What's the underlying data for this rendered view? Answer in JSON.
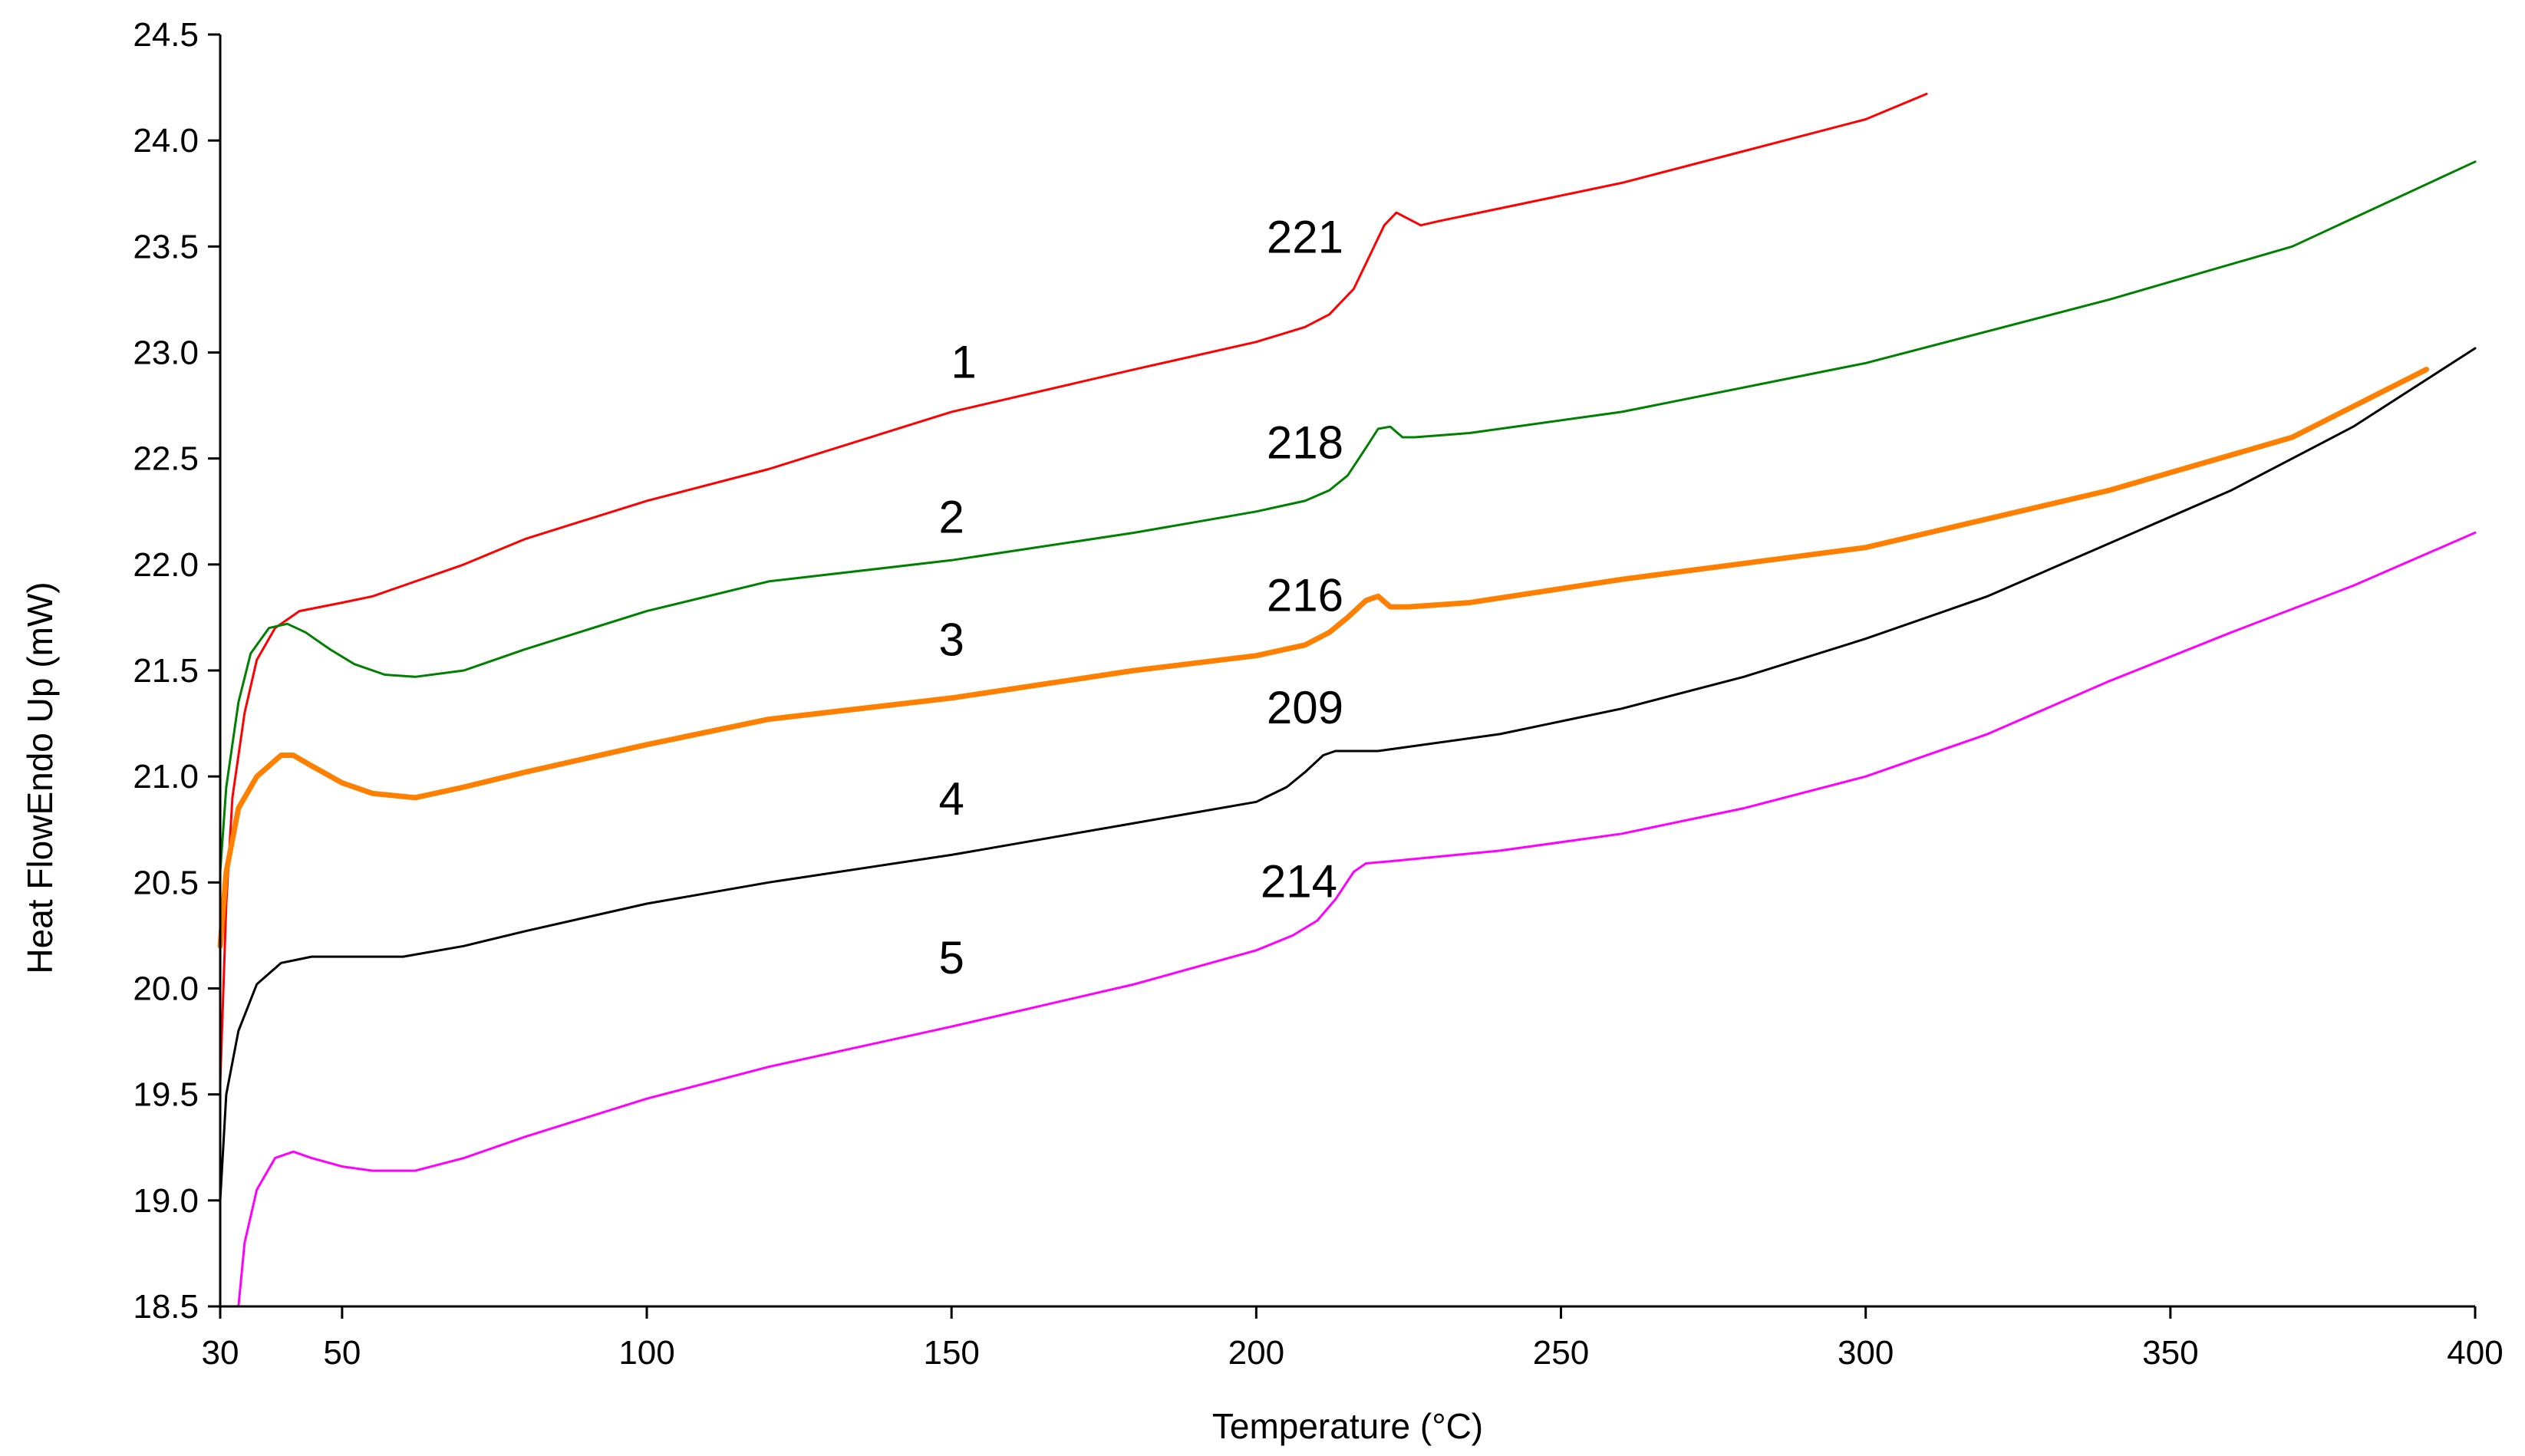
{
  "chart_data": {
    "type": "line",
    "title": "",
    "xlabel": "Temperature (°C)",
    "ylabel": "Heat FlowEndo Up (mW)",
    "xlim": [
      30,
      400
    ],
    "ylim": [
      18.5,
      24.5
    ],
    "grid": false,
    "legend": "none",
    "x_ticks": [
      {
        "value": 30,
        "label": "30"
      },
      {
        "value": 50,
        "label": "50"
      },
      {
        "value": 100,
        "label": "100"
      },
      {
        "value": 150,
        "label": "150"
      },
      {
        "value": 200,
        "label": "200"
      },
      {
        "value": 250,
        "label": "250"
      },
      {
        "value": 300,
        "label": "300"
      },
      {
        "value": 350,
        "label": "350"
      },
      {
        "value": 400,
        "label": "400"
      }
    ],
    "y_ticks": [
      {
        "value": 18.5,
        "label": "18.5"
      },
      {
        "value": 19.0,
        "label": "19.0"
      },
      {
        "value": 19.5,
        "label": "19.5"
      },
      {
        "value": 20.0,
        "label": "20.0"
      },
      {
        "value": 20.5,
        "label": "20.5"
      },
      {
        "value": 21.0,
        "label": "21.0"
      },
      {
        "value": 21.5,
        "label": "21.5"
      },
      {
        "value": 22.0,
        "label": "22.0"
      },
      {
        "value": 22.5,
        "label": "22.5"
      },
      {
        "value": 23.0,
        "label": "23.0"
      },
      {
        "value": 23.5,
        "label": "23.5"
      },
      {
        "value": 24.0,
        "label": "24.0"
      },
      {
        "value": 24.5,
        "label": "24.5"
      }
    ],
    "series": [
      {
        "id": "1",
        "color": "#ff0000",
        "width": 3,
        "points": [
          [
            30,
            19.55
          ],
          [
            31,
            20.4
          ],
          [
            32,
            20.9
          ],
          [
            34,
            21.3
          ],
          [
            36,
            21.55
          ],
          [
            39,
            21.7
          ],
          [
            43,
            21.78
          ],
          [
            50,
            21.82
          ],
          [
            55,
            21.85
          ],
          [
            60,
            21.9
          ],
          [
            70,
            22.0
          ],
          [
            80,
            22.12
          ],
          [
            100,
            22.3
          ],
          [
            120,
            22.45
          ],
          [
            150,
            22.72
          ],
          [
            180,
            22.92
          ],
          [
            200,
            23.05
          ],
          [
            208,
            23.12
          ],
          [
            212,
            23.18
          ],
          [
            216,
            23.3
          ],
          [
            219,
            23.48
          ],
          [
            221,
            23.6
          ],
          [
            223,
            23.66
          ],
          [
            225,
            23.63
          ],
          [
            227,
            23.6
          ],
          [
            230,
            23.62
          ],
          [
            240,
            23.68
          ],
          [
            260,
            23.8
          ],
          [
            280,
            23.95
          ],
          [
            300,
            24.1
          ],
          [
            310,
            24.22
          ]
        ]
      },
      {
        "id": "2",
        "color": "#008000",
        "width": 3,
        "points": [
          [
            30,
            20.55
          ],
          [
            31,
            20.95
          ],
          [
            33,
            21.35
          ],
          [
            35,
            21.58
          ],
          [
            38,
            21.7
          ],
          [
            41,
            21.72
          ],
          [
            44,
            21.68
          ],
          [
            48,
            21.6
          ],
          [
            52,
            21.53
          ],
          [
            57,
            21.48
          ],
          [
            62,
            21.47
          ],
          [
            70,
            21.5
          ],
          [
            80,
            21.6
          ],
          [
            100,
            21.78
          ],
          [
            120,
            21.92
          ],
          [
            150,
            22.02
          ],
          [
            180,
            22.15
          ],
          [
            200,
            22.25
          ],
          [
            208,
            22.3
          ],
          [
            212,
            22.35
          ],
          [
            215,
            22.42
          ],
          [
            218,
            22.55
          ],
          [
            220,
            22.64
          ],
          [
            222,
            22.65
          ],
          [
            224,
            22.6
          ],
          [
            226,
            22.6
          ],
          [
            235,
            22.62
          ],
          [
            260,
            22.72
          ],
          [
            300,
            22.95
          ],
          [
            340,
            23.25
          ],
          [
            370,
            23.5
          ],
          [
            400,
            23.9
          ]
        ]
      },
      {
        "id": "3",
        "color": "#ff8000",
        "width": 7,
        "points": [
          [
            30,
            20.2
          ],
          [
            31,
            20.55
          ],
          [
            33,
            20.85
          ],
          [
            36,
            21.0
          ],
          [
            40,
            21.1
          ],
          [
            42,
            21.1
          ],
          [
            45,
            21.05
          ],
          [
            50,
            20.97
          ],
          [
            55,
            20.92
          ],
          [
            62,
            20.9
          ],
          [
            70,
            20.95
          ],
          [
            80,
            21.02
          ],
          [
            100,
            21.15
          ],
          [
            120,
            21.27
          ],
          [
            150,
            21.37
          ],
          [
            180,
            21.5
          ],
          [
            200,
            21.57
          ],
          [
            208,
            21.62
          ],
          [
            212,
            21.68
          ],
          [
            215,
            21.75
          ],
          [
            218,
            21.83
          ],
          [
            220,
            21.85
          ],
          [
            222,
            21.8
          ],
          [
            225,
            21.8
          ],
          [
            235,
            21.82
          ],
          [
            260,
            21.93
          ],
          [
            300,
            22.08
          ],
          [
            340,
            22.35
          ],
          [
            370,
            22.6
          ],
          [
            392,
            22.92
          ]
        ]
      },
      {
        "id": "4",
        "color": "#000000",
        "width": 3,
        "points": [
          [
            30,
            19.0
          ],
          [
            31,
            19.5
          ],
          [
            33,
            19.8
          ],
          [
            36,
            20.02
          ],
          [
            40,
            20.12
          ],
          [
            45,
            20.15
          ],
          [
            50,
            20.15
          ],
          [
            60,
            20.15
          ],
          [
            70,
            20.2
          ],
          [
            80,
            20.27
          ],
          [
            100,
            20.4
          ],
          [
            120,
            20.5
          ],
          [
            150,
            20.63
          ],
          [
            180,
            20.78
          ],
          [
            200,
            20.88
          ],
          [
            205,
            20.95
          ],
          [
            208,
            21.02
          ],
          [
            211,
            21.1
          ],
          [
            213,
            21.12
          ],
          [
            220,
            21.12
          ],
          [
            240,
            21.2
          ],
          [
            260,
            21.32
          ],
          [
            280,
            21.47
          ],
          [
            300,
            21.65
          ],
          [
            320,
            21.85
          ],
          [
            340,
            22.1
          ],
          [
            360,
            22.35
          ],
          [
            380,
            22.65
          ],
          [
            400,
            23.02
          ]
        ]
      },
      {
        "id": "5",
        "color": "#ff00ff",
        "width": 3,
        "points": [
          [
            33,
            18.5
          ],
          [
            34,
            18.8
          ],
          [
            36,
            19.05
          ],
          [
            39,
            19.2
          ],
          [
            42,
            19.23
          ],
          [
            45,
            19.2
          ],
          [
            50,
            19.16
          ],
          [
            55,
            19.14
          ],
          [
            62,
            19.14
          ],
          [
            70,
            19.2
          ],
          [
            80,
            19.3
          ],
          [
            100,
            19.48
          ],
          [
            120,
            19.63
          ],
          [
            150,
            19.82
          ],
          [
            180,
            20.02
          ],
          [
            200,
            20.18
          ],
          [
            206,
            20.25
          ],
          [
            210,
            20.32
          ],
          [
            213,
            20.42
          ],
          [
            216,
            20.55
          ],
          [
            218,
            20.59
          ],
          [
            222,
            20.6
          ],
          [
            240,
            20.65
          ],
          [
            260,
            20.73
          ],
          [
            280,
            20.85
          ],
          [
            300,
            21.0
          ],
          [
            320,
            21.2
          ],
          [
            340,
            21.45
          ],
          [
            360,
            21.68
          ],
          [
            380,
            21.9
          ],
          [
            400,
            22.15
          ]
        ]
      }
    ],
    "annotations": [
      {
        "text": "221",
        "x": 208,
        "y": 23.47
      },
      {
        "text": "1",
        "x": 152,
        "y": 22.88
      },
      {
        "text": "218",
        "x": 208,
        "y": 22.5
      },
      {
        "text": "2",
        "x": 150,
        "y": 22.15
      },
      {
        "text": "216",
        "x": 208,
        "y": 21.78
      },
      {
        "text": "3",
        "x": 150,
        "y": 21.57
      },
      {
        "text": "209",
        "x": 208,
        "y": 21.25
      },
      {
        "text": "4",
        "x": 150,
        "y": 20.82
      },
      {
        "text": "214",
        "x": 207,
        "y": 20.43
      },
      {
        "text": "5",
        "x": 150,
        "y": 20.07
      }
    ]
  }
}
